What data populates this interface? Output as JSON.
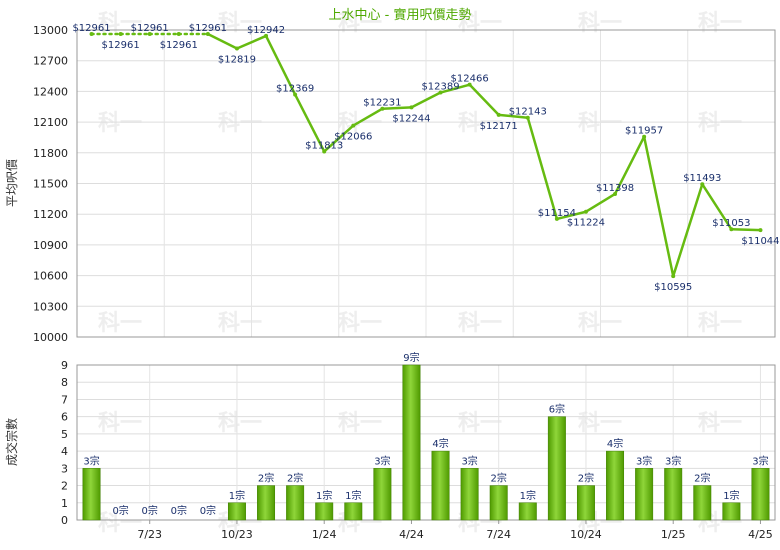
{
  "chart_data": [
    {
      "type": "line",
      "title": "上水中心 - 實用呎價走勢",
      "ylabel": "平均呎價",
      "ylim": [
        10000,
        13000
      ],
      "yticks": [
        10000,
        10300,
        10600,
        10900,
        11200,
        11500,
        11800,
        12100,
        12400,
        12700,
        13000
      ],
      "grid": true,
      "categories": [
        "2023-05",
        "2023-06",
        "2023-07",
        "2023-08",
        "2023-09",
        "2023-10",
        "2023-11",
        "2023-12",
        "2024-01",
        "2024-02",
        "2024-03",
        "2024-04",
        "2024-05",
        "2024-06",
        "2024-07",
        "2024-08",
        "2024-09",
        "2024-10",
        "2024-11",
        "2024-12",
        "2025-01",
        "2025-02",
        "2025-03",
        "2025-04"
      ],
      "values": [
        12961,
        12961,
        12961,
        12961,
        12961,
        12819,
        12942,
        12369,
        11813,
        12066,
        12231,
        12244,
        12389,
        12466,
        12171,
        12143,
        11154,
        11224,
        11398,
        11957,
        10595,
        11493,
        11053,
        11044
      ],
      "labels": [
        "$12961",
        "$12961",
        "$12961",
        "$12961",
        "$12961",
        "$12819",
        "$12942",
        "$12369",
        "$11813",
        "$12066",
        "$12231",
        "$12244",
        "$12389",
        "$12466",
        "$12171",
        "$12143",
        "$11154",
        "$11224",
        "$11398",
        "$11957",
        "$10595",
        "$11493",
        "$11053",
        "$11044"
      ],
      "dotted_segments": [
        0,
        4
      ],
      "line_color": "#66bb11"
    },
    {
      "type": "bar",
      "ylabel": "成交宗數",
      "ylim": [
        0,
        9
      ],
      "yticks": [
        0,
        1,
        2,
        3,
        4,
        5,
        6,
        7,
        8,
        9
      ],
      "grid": true,
      "x_ticks": [
        {
          "index": 2,
          "label": "7/23"
        },
        {
          "index": 5,
          "label": "10/23"
        },
        {
          "index": 8,
          "label": "1/24"
        },
        {
          "index": 11,
          "label": "4/24"
        },
        {
          "index": 14,
          "label": "7/24"
        },
        {
          "index": 17,
          "label": "10/24"
        },
        {
          "index": 20,
          "label": "1/25"
        },
        {
          "index": 23,
          "label": "4/25"
        }
      ],
      "values": [
        3,
        0,
        0,
        0,
        0,
        1,
        2,
        2,
        1,
        1,
        3,
        9,
        4,
        3,
        2,
        1,
        6,
        2,
        4,
        3,
        3,
        2,
        1,
        3
      ],
      "labels": [
        "3宗",
        "0宗",
        "0宗",
        "0宗",
        "0宗",
        "1宗",
        "2宗",
        "2宗",
        "1宗",
        "1宗",
        "3宗",
        "9宗",
        "4宗",
        "3宗",
        "2宗",
        "1宗",
        "6宗",
        "2宗",
        "4宗",
        "3宗",
        "3宗",
        "2宗",
        "1宗",
        "3宗"
      ],
      "bar_color": "#66bb11"
    }
  ],
  "watermark": "科一"
}
